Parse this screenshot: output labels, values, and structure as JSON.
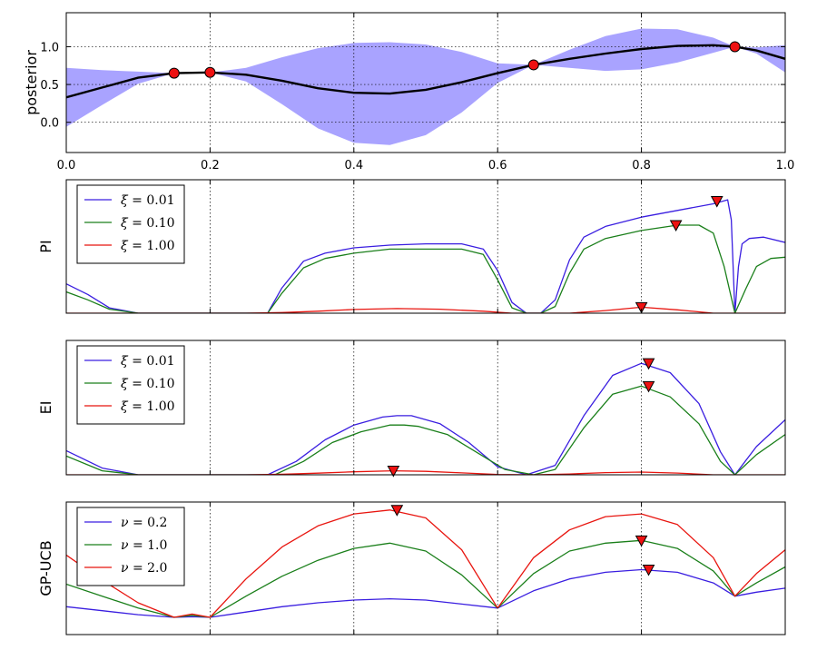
{
  "chart_data": [
    {
      "type": "line",
      "ylabel": "posterior",
      "xlabel": "",
      "xlim": [
        0.0,
        1.0
      ],
      "ylim": [
        -0.4,
        1.45
      ],
      "xticks": [
        "0.0",
        "0.2",
        "0.4",
        "0.6",
        "0.8",
        "1.0"
      ],
      "yticks": [
        "0.0",
        "0.5",
        "1.0"
      ],
      "grid": true,
      "mean": {
        "x": [
          0.0,
          0.05,
          0.1,
          0.15,
          0.2,
          0.25,
          0.3,
          0.35,
          0.4,
          0.45,
          0.5,
          0.55,
          0.6,
          0.65,
          0.7,
          0.75,
          0.8,
          0.85,
          0.9,
          0.93,
          0.96,
          1.0
        ],
        "y": [
          0.33,
          0.46,
          0.59,
          0.65,
          0.66,
          0.63,
          0.55,
          0.45,
          0.39,
          0.38,
          0.43,
          0.53,
          0.65,
          0.76,
          0.84,
          0.91,
          0.97,
          1.01,
          1.02,
          1.0,
          0.95,
          0.84
        ]
      },
      "band_upper": [
        0.72,
        0.69,
        0.67,
        0.65,
        0.66,
        0.72,
        0.86,
        0.98,
        1.05,
        1.06,
        1.03,
        0.93,
        0.78,
        0.76,
        0.96,
        1.14,
        1.24,
        1.23,
        1.12,
        1.0,
        0.99,
        1.02
      ],
      "band_lower": [
        -0.06,
        0.23,
        0.51,
        0.65,
        0.66,
        0.54,
        0.24,
        -0.08,
        -0.27,
        -0.3,
        -0.17,
        0.13,
        0.52,
        0.76,
        0.72,
        0.68,
        0.7,
        0.79,
        0.92,
        1.0,
        0.91,
        0.66
      ],
      "band_color": "#a9a3ff",
      "observations": {
        "x": [
          0.15,
          0.2,
          0.65,
          0.93
        ],
        "y": [
          0.65,
          0.66,
          0.76,
          1.0
        ]
      }
    },
    {
      "type": "line",
      "ylabel": "PI",
      "xlim": [
        0.0,
        1.0
      ],
      "ylim": [
        0,
        1.0
      ],
      "grid": true,
      "legend": "top-left",
      "series": [
        {
          "name": "ξ = 0.01",
          "color": "#3a1ee0",
          "x": [
            0.0,
            0.03,
            0.06,
            0.1,
            0.15,
            0.2,
            0.25,
            0.28,
            0.3,
            0.33,
            0.36,
            0.4,
            0.45,
            0.5,
            0.55,
            0.58,
            0.6,
            0.62,
            0.64,
            0.66,
            0.68,
            0.7,
            0.72,
            0.75,
            0.8,
            0.85,
            0.9,
            0.92,
            0.925,
            0.93,
            0.935,
            0.94,
            0.95,
            0.97,
            1.0
          ],
          "y": [
            0.22,
            0.14,
            0.04,
            0.0,
            0.0,
            0.0,
            0.0,
            0.0,
            0.19,
            0.39,
            0.45,
            0.49,
            0.51,
            0.52,
            0.52,
            0.48,
            0.32,
            0.08,
            0.0,
            0.0,
            0.1,
            0.4,
            0.57,
            0.65,
            0.72,
            0.77,
            0.82,
            0.85,
            0.7,
            0.0,
            0.35,
            0.52,
            0.56,
            0.57,
            0.53
          ]
        },
        {
          "name": "ξ = 0.10",
          "color": "#1a7f1a",
          "x": [
            0.0,
            0.03,
            0.06,
            0.1,
            0.15,
            0.2,
            0.25,
            0.28,
            0.3,
            0.33,
            0.36,
            0.4,
            0.45,
            0.5,
            0.55,
            0.58,
            0.6,
            0.62,
            0.64,
            0.66,
            0.68,
            0.7,
            0.72,
            0.75,
            0.8,
            0.85,
            0.88,
            0.9,
            0.915,
            0.93,
            0.945,
            0.96,
            0.98,
            1.0
          ],
          "y": [
            0.16,
            0.1,
            0.03,
            0.0,
            0.0,
            0.0,
            0.0,
            0.0,
            0.15,
            0.34,
            0.41,
            0.45,
            0.48,
            0.48,
            0.48,
            0.44,
            0.25,
            0.04,
            0.0,
            0.0,
            0.05,
            0.3,
            0.48,
            0.56,
            0.62,
            0.66,
            0.66,
            0.6,
            0.35,
            0.0,
            0.18,
            0.35,
            0.41,
            0.42
          ]
        },
        {
          "name": "ξ = 1.00",
          "color": "#e8150f",
          "x": [
            0.0,
            0.25,
            0.3,
            0.35,
            0.4,
            0.46,
            0.52,
            0.58,
            0.62,
            0.7,
            0.75,
            0.8,
            0.85,
            0.9,
            1.0
          ],
          "y": [
            0.0,
            0.0,
            0.005,
            0.015,
            0.028,
            0.035,
            0.03,
            0.015,
            0.0,
            0.0,
            0.02,
            0.045,
            0.025,
            0.0,
            0.0
          ]
        }
      ],
      "maxima": [
        {
          "series": "ξ = 0.01",
          "x": 0.905,
          "y": 0.84
        },
        {
          "series": "ξ = 0.10",
          "x": 0.848,
          "y": 0.66
        },
        {
          "series": "ξ = 1.00",
          "x": 0.8,
          "y": 0.045
        }
      ]
    },
    {
      "type": "line",
      "ylabel": "EI",
      "xlim": [
        0.0,
        1.0
      ],
      "ylim": [
        0,
        1.0
      ],
      "grid": true,
      "legend": "top-left",
      "series": [
        {
          "name": "ξ = 0.01",
          "color": "#3a1ee0",
          "x": [
            0.0,
            0.05,
            0.1,
            0.15,
            0.2,
            0.25,
            0.28,
            0.32,
            0.36,
            0.4,
            0.44,
            0.46,
            0.48,
            0.52,
            0.56,
            0.6,
            0.64,
            0.68,
            0.72,
            0.76,
            0.8,
            0.84,
            0.88,
            0.91,
            0.93,
            0.96,
            1.0
          ],
          "y": [
            0.18,
            0.05,
            0.0,
            0.0,
            0.0,
            0.0,
            0.0,
            0.1,
            0.26,
            0.37,
            0.43,
            0.44,
            0.44,
            0.38,
            0.24,
            0.06,
            0.0,
            0.07,
            0.44,
            0.74,
            0.83,
            0.76,
            0.53,
            0.17,
            0.0,
            0.21,
            0.41
          ]
        },
        {
          "name": "ξ = 0.10",
          "color": "#1a7f1a",
          "x": [
            0.0,
            0.05,
            0.1,
            0.15,
            0.2,
            0.25,
            0.29,
            0.33,
            0.37,
            0.41,
            0.45,
            0.47,
            0.49,
            0.53,
            0.57,
            0.61,
            0.65,
            0.68,
            0.72,
            0.76,
            0.8,
            0.84,
            0.88,
            0.91,
            0.93,
            0.96,
            1.0
          ],
          "y": [
            0.14,
            0.03,
            0.0,
            0.0,
            0.0,
            0.0,
            0.0,
            0.1,
            0.24,
            0.32,
            0.37,
            0.37,
            0.36,
            0.3,
            0.17,
            0.04,
            0.0,
            0.04,
            0.35,
            0.6,
            0.66,
            0.58,
            0.38,
            0.1,
            0.0,
            0.15,
            0.3
          ]
        },
        {
          "name": "ξ = 1.00",
          "color": "#e8150f",
          "x": [
            0.0,
            0.25,
            0.3,
            0.35,
            0.4,
            0.455,
            0.5,
            0.55,
            0.6,
            0.65,
            0.7,
            0.75,
            0.8,
            0.85,
            0.9,
            1.0
          ],
          "y": [
            0.0,
            0.0,
            0.004,
            0.012,
            0.022,
            0.03,
            0.026,
            0.014,
            0.003,
            0.0,
            0.006,
            0.016,
            0.02,
            0.013,
            0.0,
            0.0
          ]
        }
      ],
      "maxima": [
        {
          "series": "ξ = 0.01",
          "x": 0.81,
          "y": 0.83
        },
        {
          "series": "ξ = 0.10",
          "x": 0.81,
          "y": 0.66
        },
        {
          "series": "ξ = 1.00",
          "x": 0.455,
          "y": 0.03
        }
      ]
    },
    {
      "type": "line",
      "ylabel": "GP-UCB",
      "xlim": [
        0.0,
        1.0
      ],
      "ylim": [
        0,
        1.0
      ],
      "grid": true,
      "legend": "top-left",
      "series": [
        {
          "name": "ν = 0.2",
          "color": "#3a1ee0",
          "x": [
            0.0,
            0.05,
            0.1,
            0.15,
            0.175,
            0.2,
            0.25,
            0.3,
            0.35,
            0.4,
            0.45,
            0.5,
            0.55,
            0.6,
            0.65,
            0.7,
            0.75,
            0.8,
            0.85,
            0.9,
            0.93,
            0.96,
            1.0
          ],
          "y": [
            0.21,
            0.18,
            0.15,
            0.13,
            0.135,
            0.13,
            0.17,
            0.21,
            0.24,
            0.26,
            0.27,
            0.26,
            0.23,
            0.2,
            0.33,
            0.42,
            0.47,
            0.49,
            0.47,
            0.39,
            0.29,
            0.32,
            0.35
          ]
        },
        {
          "name": "ν = 1.0",
          "color": "#1a7f1a",
          "x": [
            0.0,
            0.05,
            0.1,
            0.15,
            0.175,
            0.2,
            0.25,
            0.3,
            0.35,
            0.4,
            0.45,
            0.5,
            0.55,
            0.6,
            0.65,
            0.7,
            0.75,
            0.8,
            0.85,
            0.9,
            0.93,
            0.96,
            1.0
          ],
          "y": [
            0.38,
            0.29,
            0.2,
            0.13,
            0.145,
            0.13,
            0.29,
            0.44,
            0.56,
            0.65,
            0.69,
            0.63,
            0.45,
            0.2,
            0.46,
            0.63,
            0.69,
            0.71,
            0.65,
            0.48,
            0.29,
            0.39,
            0.51
          ]
        },
        {
          "name": "ν = 2.0",
          "color": "#e8150f",
          "x": [
            0.0,
            0.05,
            0.1,
            0.15,
            0.175,
            0.2,
            0.25,
            0.3,
            0.35,
            0.4,
            0.45,
            0.5,
            0.55,
            0.6,
            0.65,
            0.7,
            0.75,
            0.8,
            0.85,
            0.9,
            0.93,
            0.96,
            1.0
          ],
          "y": [
            0.6,
            0.41,
            0.24,
            0.13,
            0.155,
            0.13,
            0.42,
            0.66,
            0.82,
            0.91,
            0.94,
            0.88,
            0.64,
            0.2,
            0.58,
            0.79,
            0.89,
            0.91,
            0.83,
            0.58,
            0.29,
            0.46,
            0.64
          ]
        }
      ],
      "maxima": [
        {
          "series": "ν = 0.2",
          "x": 0.81,
          "y": 0.49
        },
        {
          "series": "ν = 1.0",
          "x": 0.8,
          "y": 0.71
        },
        {
          "series": "ν = 2.0",
          "x": 0.46,
          "y": 0.94
        }
      ]
    }
  ]
}
